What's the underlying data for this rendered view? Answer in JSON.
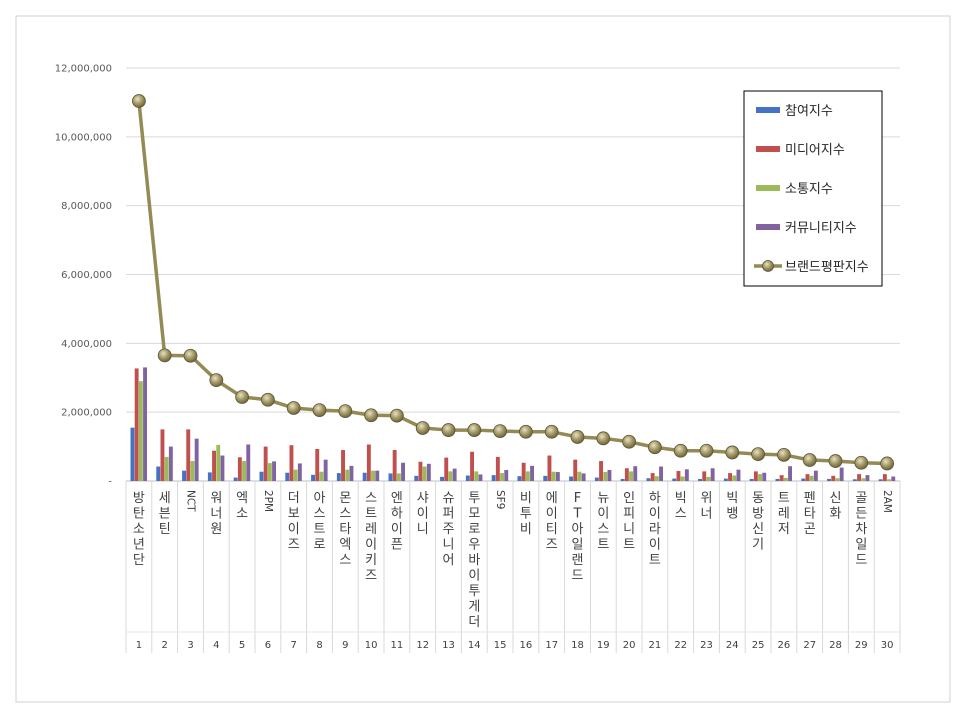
{
  "chart_data": {
    "type": "bar",
    "title": "",
    "xlabel": "",
    "ylabel": "",
    "ylim": [
      0,
      12000000
    ],
    "yticks": [
      "-",
      "2,000,000",
      "4,000,000",
      "6,000,000",
      "8,000,000",
      "10,000,000",
      "12,000,000"
    ],
    "grid": true,
    "legend_position": "top-right",
    "categories": [
      "방탄소년단",
      "세븐틴",
      "NCT",
      "워너원",
      "엑소",
      "2PM",
      "더보이즈",
      "아스트로",
      "몬스타엑스",
      "스트레이키즈",
      "엔하이픈",
      "샤이니",
      "슈퍼주니어",
      "투모로우바이투게더",
      "SF9",
      "비투비",
      "에이티즈",
      "FT아일랜드",
      "뉴이스트",
      "인피니트",
      "하이라이트",
      "빅스",
      "위너",
      "빅뱅",
      "동방신기",
      "트레저",
      "펜타곤",
      "신화",
      "골든차일드",
      "2AM"
    ],
    "ranks": [
      "1",
      "2",
      "3",
      "4",
      "5",
      "6",
      "7",
      "8",
      "9",
      "10",
      "11",
      "12",
      "13",
      "14",
      "15",
      "16",
      "17",
      "18",
      "19",
      "20",
      "21",
      "22",
      "23",
      "24",
      "25",
      "26",
      "27",
      "28",
      "29",
      "30"
    ],
    "series": [
      {
        "name": "참여지수",
        "type": "bar",
        "color": "#4472C4",
        "values": [
          1550000,
          420000,
          300000,
          250000,
          100000,
          270000,
          240000,
          180000,
          230000,
          240000,
          220000,
          150000,
          120000,
          160000,
          170000,
          140000,
          150000,
          130000,
          100000,
          60000,
          80000,
          70000,
          60000,
          70000,
          60000,
          60000,
          70000,
          60000,
          50000,
          50000
        ]
      },
      {
        "name": "미디어지수",
        "type": "bar",
        "color": "#C0504D",
        "values": [
          3270000,
          1500000,
          1500000,
          880000,
          690000,
          1000000,
          1040000,
          930000,
          900000,
          1060000,
          900000,
          560000,
          680000,
          850000,
          700000,
          530000,
          740000,
          620000,
          580000,
          370000,
          230000,
          290000,
          280000,
          230000,
          280000,
          170000,
          200000,
          150000,
          200000,
          200000
        ]
      },
      {
        "name": "소통지수",
        "type": "bar",
        "color": "#9BBB59",
        "values": [
          2900000,
          700000,
          580000,
          1050000,
          580000,
          520000,
          330000,
          270000,
          330000,
          300000,
          220000,
          420000,
          280000,
          280000,
          230000,
          280000,
          270000,
          270000,
          260000,
          280000,
          140000,
          130000,
          120000,
          160000,
          200000,
          90000,
          150000,
          80000,
          80000,
          50000
        ]
      },
      {
        "name": "커뮤니티지수",
        "type": "bar",
        "color": "#8064A2",
        "values": [
          3300000,
          1000000,
          1230000,
          740000,
          1060000,
          570000,
          510000,
          620000,
          440000,
          300000,
          530000,
          500000,
          360000,
          190000,
          320000,
          440000,
          260000,
          220000,
          320000,
          430000,
          420000,
          340000,
          370000,
          330000,
          240000,
          430000,
          300000,
          390000,
          170000,
          130000
        ]
      },
      {
        "name": "브랜드평판지수",
        "type": "line",
        "color": "#948A54",
        "values": [
          11040000,
          3650000,
          3640000,
          2930000,
          2440000,
          2360000,
          2120000,
          2060000,
          2030000,
          1910000,
          1900000,
          1540000,
          1480000,
          1480000,
          1450000,
          1430000,
          1430000,
          1280000,
          1240000,
          1140000,
          980000,
          880000,
          880000,
          830000,
          780000,
          760000,
          610000,
          580000,
          530000,
          510000
        ]
      }
    ]
  }
}
